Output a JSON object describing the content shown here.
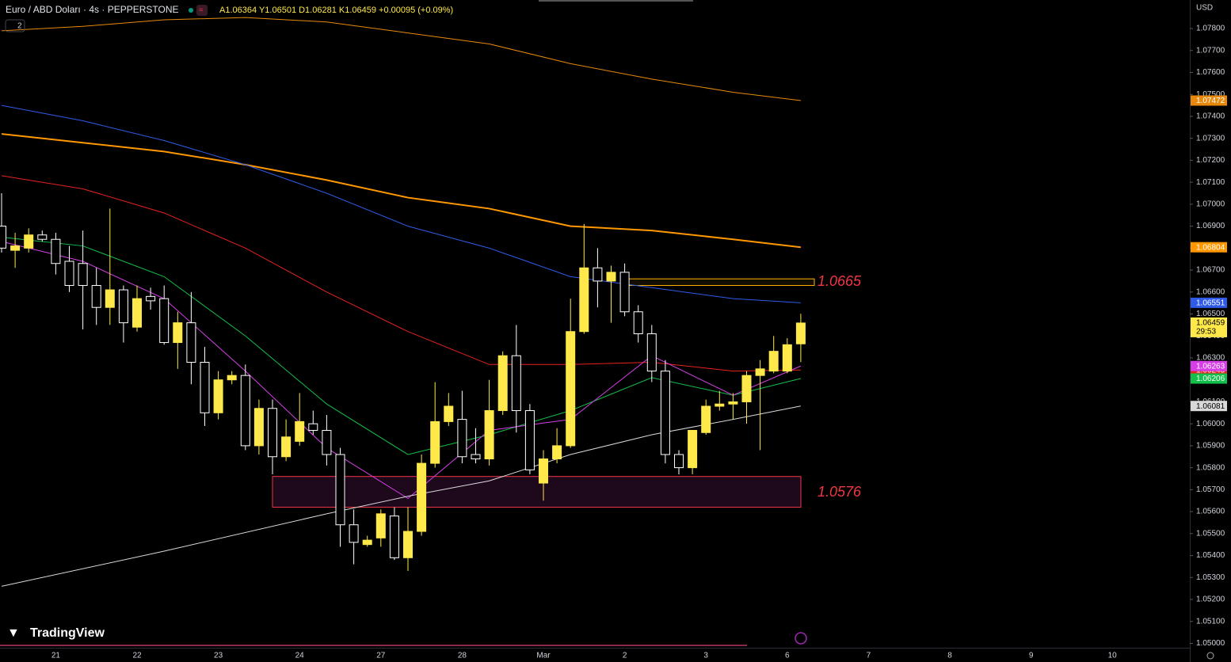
{
  "chart_data": {
    "type": "candlestick",
    "title": "Euro / ABD Doları · 4s · PEPPERSTONE",
    "legend_values": "A1.06364 Y1.06501 D1.06281 K1.06459 +0.00095 (+0.09%)",
    "indicator_count": "2",
    "currency": "USD",
    "countdown": "29:53",
    "brand": "TradingView",
    "up_color": "#ffe94a",
    "down_color": "#ffffff",
    "open": [
      1.069,
      1.0679,
      1.068,
      1.0686,
      1.0684,
      1.0674,
      1.0673,
      1.0663,
      1.0653,
      1.0661,
      1.0644,
      1.0658,
      1.0657,
      1.0637,
      1.0646,
      1.0628,
      1.0605,
      1.062,
      1.0622,
      1.059,
      1.0607,
      1.0585,
      1.0592,
      1.06,
      1.0597,
      1.0586,
      1.0554,
      1.0545,
      1.0548,
      1.0558,
      1.0539,
      1.0551,
      1.0582,
      1.0601,
      1.0602,
      1.0586,
      1.0584,
      1.0606,
      1.0631,
      1.0606,
      1.0573,
      1.0584,
      1.059,
      1.0642,
      1.0671,
      1.0665,
      1.0669,
      1.0651,
      1.0641,
      1.0624,
      1.0586,
      1.058,
      1.0596,
      1.0608,
      1.0609,
      1.061,
      1.0622,
      1.0624,
      1.0624,
      1.06364
    ],
    "high": [
      1.0705,
      1.0687,
      1.0689,
      1.0688,
      1.0687,
      1.0681,
      1.0688,
      1.0671,
      1.0698,
      1.0663,
      1.0663,
      1.0662,
      1.0663,
      1.0651,
      1.066,
      1.0635,
      1.0624,
      1.0624,
      1.0627,
      1.0611,
      1.0611,
      1.0602,
      1.0614,
      1.0606,
      1.0604,
      1.0589,
      1.0561,
      1.0549,
      1.0561,
      1.0562,
      1.0562,
      1.0586,
      1.0619,
      1.0614,
      1.0615,
      1.0598,
      1.062,
      1.0633,
      1.0645,
      1.0609,
      1.0588,
      1.0598,
      1.0657,
      1.0691,
      1.068,
      1.0672,
      1.0673,
      1.0654,
      1.0645,
      1.0629,
      1.0588,
      1.0597,
      1.0611,
      1.0615,
      1.0614,
      1.0624,
      1.0629,
      1.064,
      1.0639,
      1.06501
    ],
    "low": [
      1.0678,
      1.0671,
      1.0678,
      1.0683,
      1.0668,
      1.066,
      1.0643,
      1.0645,
      1.0645,
      1.0637,
      1.0642,
      1.0652,
      1.0636,
      1.0625,
      1.0618,
      1.0599,
      1.0602,
      1.0618,
      1.0588,
      1.0586,
      1.0577,
      1.0583,
      1.059,
      1.0595,
      1.0581,
      1.0544,
      1.0536,
      1.0544,
      1.0544,
      1.0538,
      1.0533,
      1.0549,
      1.058,
      1.0599,
      1.0582,
      1.0582,
      1.0581,
      1.0604,
      1.0596,
      1.0577,
      1.0565,
      1.0582,
      1.0589,
      1.0641,
      1.0653,
      1.0646,
      1.0649,
      1.0637,
      1.0619,
      1.0582,
      1.0577,
      1.0577,
      1.0595,
      1.0606,
      1.0602,
      1.06,
      1.0588,
      1.0623,
      1.0623,
      1.06281
    ],
    "close": [
      1.068,
      1.0681,
      1.0686,
      1.0684,
      1.0673,
      1.0663,
      1.0663,
      1.0653,
      1.0661,
      1.0646,
      1.0657,
      1.0656,
      1.0637,
      1.0646,
      1.0628,
      1.0605,
      1.062,
      1.0622,
      1.059,
      1.0607,
      1.0585,
      1.0594,
      1.0601,
      1.0597,
      1.0586,
      1.0554,
      1.0546,
      1.0547,
      1.0559,
      1.0539,
      1.0551,
      1.0582,
      1.0601,
      1.0608,
      1.0585,
      1.0584,
      1.0606,
      1.0631,
      1.0606,
      1.0579,
      1.0584,
      1.059,
      1.0642,
      1.0671,
      1.0665,
      1.0669,
      1.0651,
      1.0641,
      1.0624,
      1.0586,
      1.058,
      1.0597,
      1.0608,
      1.0609,
      1.061,
      1.0622,
      1.0625,
      1.0633,
      1.0636,
      1.06459
    ],
    "overlays": [
      {
        "color": "#e8890c",
        "width": 1,
        "x": [
          0,
          6,
          12,
          18,
          24,
          30,
          36,
          42,
          48,
          54,
          59
        ],
        "values": [
          1.0779,
          1.0781,
          1.0784,
          1.0785,
          1.0783,
          1.0778,
          1.0773,
          1.0764,
          1.0757,
          1.0751,
          1.07472
        ]
      },
      {
        "color": "#ff9800",
        "width": 2,
        "x": [
          0,
          6,
          12,
          18,
          24,
          30,
          36,
          42,
          48,
          54,
          59
        ],
        "values": [
          1.0732,
          1.0728,
          1.0724,
          1.0718,
          1.0711,
          1.0703,
          1.0698,
          1.069,
          1.0688,
          1.0684,
          1.06804
        ]
      },
      {
        "color": "#2f5be8",
        "width": 1,
        "x": [
          0,
          6,
          12,
          18,
          24,
          30,
          36,
          42,
          48,
          54,
          59
        ],
        "values": [
          1.0745,
          1.0738,
          1.0729,
          1.0718,
          1.0705,
          1.069,
          1.068,
          1.0667,
          1.0662,
          1.0657,
          1.06551
        ]
      },
      {
        "color": "#e8221f",
        "width": 1,
        "x": [
          0,
          6,
          12,
          18,
          24,
          30,
          36,
          42,
          48,
          54,
          59
        ],
        "values": [
          1.0713,
          1.0707,
          1.0696,
          1.068,
          1.066,
          1.0642,
          1.0627,
          1.0627,
          1.0628,
          1.0624,
          1.06245
        ]
      },
      {
        "color": "#13c04a",
        "width": 1,
        "x": [
          0,
          6,
          12,
          18,
          24,
          30,
          36,
          42,
          48,
          54,
          59
        ],
        "values": [
          1.0685,
          1.0681,
          1.0667,
          1.064,
          1.0609,
          1.0586,
          1.0595,
          1.0606,
          1.0621,
          1.0613,
          1.06206
        ]
      },
      {
        "color": "#d63ee6",
        "width": 1,
        "x": [
          0,
          6,
          12,
          18,
          24,
          30,
          36,
          42,
          48,
          54,
          59
        ],
        "values": [
          1.0683,
          1.0674,
          1.0657,
          1.0624,
          1.0589,
          1.0566,
          1.0597,
          1.0602,
          1.0631,
          1.0613,
          1.06263
        ]
      },
      {
        "color": "#d8d8d8",
        "width": 1,
        "x": [
          0,
          12,
          24,
          30,
          36,
          42,
          48,
          54,
          59
        ],
        "values": [
          1.0526,
          1.0542,
          1.0559,
          1.0567,
          1.0574,
          1.0586,
          1.0595,
          1.0602,
          1.06081
        ]
      }
    ],
    "zones": [
      {
        "label": "1.0665",
        "top": 1.0666,
        "bottom": 1.0663,
        "color": "#ffb300"
      },
      {
        "label": "1.0576",
        "top": 1.0576,
        "bottom": 1.0562,
        "color": "#f23645"
      }
    ],
    "x_labels": [
      "21",
      "22",
      "23",
      "24",
      "27",
      "28",
      "Mar",
      "2",
      "3",
      "6",
      "7",
      "8",
      "9",
      "10"
    ],
    "ylim": [
      1.0498,
      1.0793
    ],
    "yticks": [
      {
        "value": 1.05,
        "label": "1.05000"
      },
      {
        "value": 1.051,
        "label": "1.05100"
      },
      {
        "value": 1.052,
        "label": "1.05200"
      },
      {
        "value": 1.053,
        "label": "1.05300"
      },
      {
        "value": 1.054,
        "label": "1.05400"
      },
      {
        "value": 1.055,
        "label": "1.05500"
      },
      {
        "value": 1.056,
        "label": "1.05600"
      },
      {
        "value": 1.057,
        "label": "1.05700"
      },
      {
        "value": 1.058,
        "label": "1.05800"
      },
      {
        "value": 1.059,
        "label": "1.05900"
      },
      {
        "value": 1.06,
        "label": "1.06000"
      },
      {
        "value": 1.061,
        "label": "1.06100"
      },
      {
        "value": 1.062,
        "label": "1.06200"
      },
      {
        "value": 1.063,
        "label": "1.06300"
      },
      {
        "value": 1.064,
        "label": "1.06400"
      },
      {
        "value": 1.065,
        "label": "1.06500"
      },
      {
        "value": 1.066,
        "label": "1.06600"
      },
      {
        "value": 1.067,
        "label": "1.06700"
      },
      {
        "value": 1.068,
        "label": "1.06800"
      },
      {
        "value": 1.069,
        "label": "1.06900"
      },
      {
        "value": 1.07,
        "label": "1.07000"
      },
      {
        "value": 1.071,
        "label": "1.07100"
      },
      {
        "value": 1.072,
        "label": "1.07200"
      },
      {
        "value": 1.073,
        "label": "1.07300"
      },
      {
        "value": 1.074,
        "label": "1.07400"
      },
      {
        "value": 1.075,
        "label": "1.07500"
      },
      {
        "value": 1.076,
        "label": "1.07600"
      },
      {
        "value": 1.077,
        "label": "1.07700"
      },
      {
        "value": 1.078,
        "label": "1.07800"
      }
    ]
  }
}
